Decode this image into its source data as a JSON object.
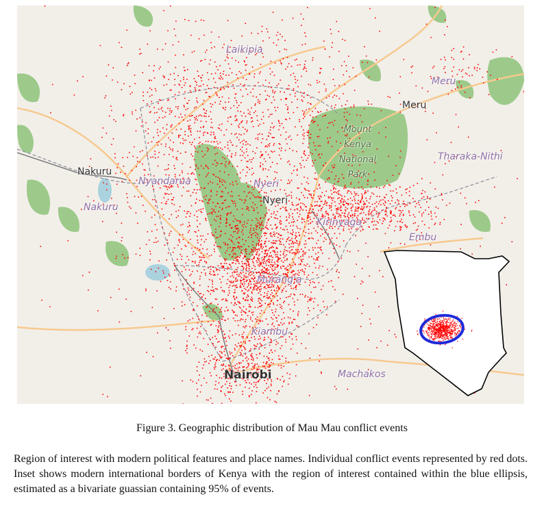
{
  "map": {
    "places": {
      "laikipia": "Laikipia",
      "meru_county": "Meru",
      "meru_town": "Meru",
      "nakuru_town": "Nakuru",
      "nakuru_county": "Nakuru",
      "nyandarua": "Nyandarua",
      "nyeri_county": "Nyeri",
      "nyeri_town": "Nyeri",
      "mount_kenya_line1": "Mount",
      "mount_kenya_line2": "Kenya",
      "mount_kenya_line3": "National",
      "mount_kenya_line4": "Park",
      "tharaka_nithi": "Tharaka-Nithi",
      "kirinyaga": "Kirinyaga",
      "embu": "Embu",
      "muranga": "Murang'a",
      "kiambu": "Kiambu",
      "nairobi": "Nairobi",
      "machakos": "Machakos"
    },
    "colors": {
      "background": "#f2efe9",
      "forest": "#8fc37e",
      "event_dot": "#ff0000",
      "road": "#f7c98f",
      "border": "#7a7a7a",
      "ellipse": "#1f2bd8"
    }
  },
  "figure": {
    "caption": "Figure 3. Geographic distribution of Mau Mau conflict events",
    "description": "Region of interest with modern political features and place names. Individual conflict events represented by red dots. Inset shows modern international borders of Kenya with the region of interest contained within the blue ellipsis, estimated as a bivariate guassian containing 95% of events."
  }
}
